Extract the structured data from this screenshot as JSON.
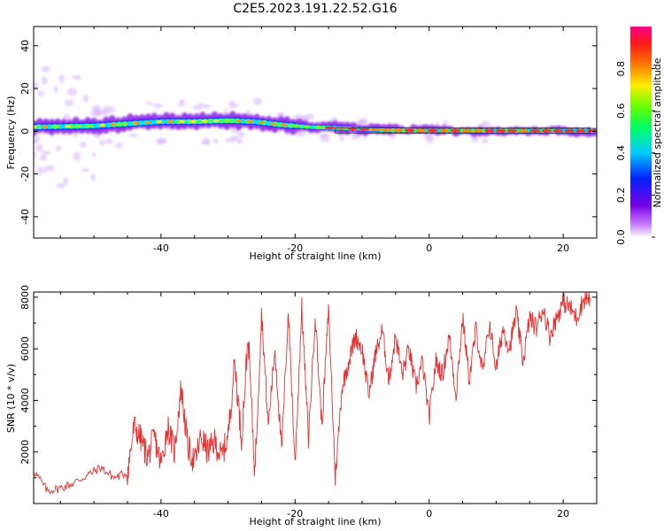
{
  "title": "C2E5.2023.191.22.52.G16",
  "chart_data": [
    {
      "type": "heatmap",
      "xlabel": "Height of straight line (km)",
      "ylabel": "Frequency (Hz)",
      "xlim": [
        -59,
        25
      ],
      "ylim": [
        -50,
        49
      ],
      "xticks": [
        -40,
        -20,
        0,
        20
      ],
      "yticks": [
        -40,
        -20,
        0,
        20,
        40
      ],
      "ridge_frequency": [
        [
          -59,
          2
        ],
        [
          -50,
          2.5
        ],
        [
          -45,
          3.5
        ],
        [
          -40,
          4.5
        ],
        [
          -35,
          4.5
        ],
        [
          -30,
          5
        ],
        [
          -26,
          4.5
        ],
        [
          -22,
          3
        ],
        [
          -18,
          2
        ],
        [
          -14,
          1.5
        ],
        [
          -10,
          1
        ],
        [
          -6,
          0.5
        ],
        [
          0,
          0.3
        ],
        [
          10,
          0.2
        ],
        [
          24,
          0.2
        ]
      ],
      "colorbar": {
        "label": "Normalized spectral amplitude",
        "range": [
          0,
          1
        ],
        "ticks": [
          "0.0",
          "0.2",
          "0.4",
          "0.6",
          "0.8"
        ]
      }
    },
    {
      "type": "line",
      "xlabel": "Height of straight line (km)",
      "ylabel": "SNR (10 * v/v)",
      "xlim": [
        -59,
        25
      ],
      "ylim": [
        0,
        8200
      ],
      "xticks": [
        -40,
        -20,
        0,
        20
      ],
      "yticks": [
        2000,
        4000,
        6000,
        8000
      ],
      "color": "#e83030",
      "series": [
        {
          "x": [
            -59,
            -57,
            -55,
            -53,
            -51,
            -49,
            -47,
            -45,
            -44,
            -43,
            -42,
            -41,
            -40,
            -39,
            -38,
            -37,
            -36,
            -35,
            -34,
            -33,
            -32,
            -31,
            -30,
            -29,
            -28,
            -27,
            -26,
            -25,
            -24,
            -23,
            -22,
            -21,
            -20,
            -19,
            -18,
            -17,
            -16,
            -15,
            -14,
            -13,
            -12,
            -11,
            -10,
            -9,
            -8,
            -7,
            -6,
            -5,
            -4,
            -3,
            -2,
            -1,
            0,
            1,
            2,
            3,
            4,
            5,
            6,
            7,
            8,
            9,
            10,
            11,
            12,
            13,
            14,
            15,
            16,
            17,
            18,
            19,
            20,
            21,
            22,
            23,
            24
          ],
          "values": [
            1300,
            500,
            600,
            800,
            1100,
            1400,
            1000,
            1200,
            3000,
            2500,
            1800,
            2600,
            1500,
            3000,
            2000,
            4500,
            2200,
            1600,
            2600,
            2000,
            2400,
            1800,
            2600,
            5500,
            2500,
            6500,
            1200,
            7400,
            3000,
            6000,
            2000,
            7500,
            1500,
            7600,
            2500,
            7300,
            3000,
            7500,
            1000,
            4500,
            5500,
            6500,
            6000,
            4200,
            5800,
            6700,
            4800,
            6500,
            5000,
            6000,
            4500,
            5500,
            3300,
            5500,
            5000,
            6500,
            4200,
            7200,
            4800,
            6800,
            5000,
            7000,
            5200,
            6800,
            6000,
            7400,
            5500,
            7200,
            6800,
            7600,
            6500,
            7200,
            7800,
            7600,
            7200,
            7900,
            8000
          ]
        }
      ]
    }
  ]
}
